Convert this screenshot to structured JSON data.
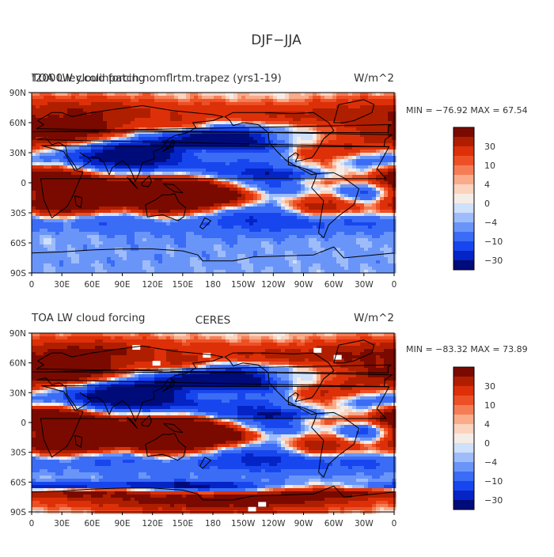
{
  "figure": {
    "title": "DJF−JJA"
  },
  "colors": {
    "scale": [
      "#000b7a",
      "#0524c6",
      "#1846ee",
      "#3b6cf6",
      "#6a95f8",
      "#9ebcf9",
      "#cfe0fb",
      "#f6ece6",
      "#fbd3bf",
      "#f9ab8a",
      "#f57d56",
      "#ee5025",
      "#dd3008",
      "#b01e00",
      "#7a0a00"
    ]
  },
  "panels": [
    {
      "id": "top",
      "title_left_a": "TOA LW cloud forcing",
      "title_left_b": "f2000.ley.colinpatch.nomflrtm.trapez (yrs1-19)",
      "title_center": "",
      "title_right": "W/m^2",
      "stats": "MIN = −76.92  MAX =  67.54",
      "colorbar_labels": [
        "30",
        "10",
        "4",
        "0",
        "−4",
        "−10",
        "−30"
      ]
    },
    {
      "id": "bottom",
      "title_left_a": "TOA LW cloud forcing",
      "title_left_b": "",
      "title_center": "CERES",
      "title_right": "W/m^2",
      "stats": "MIN = −83.32  MAX =  73.89",
      "colorbar_labels": [
        "30",
        "10",
        "4",
        "0",
        "−4",
        "−10",
        "−30"
      ]
    }
  ],
  "axes": {
    "lat_ticks": [
      "90N",
      "60N",
      "30N",
      "0",
      "30S",
      "60S",
      "90S"
    ],
    "lon_ticks": [
      "0",
      "30E",
      "60E",
      "90E",
      "120E",
      "150E",
      "180",
      "150W",
      "120W",
      "90W",
      "60W",
      "30W",
      "0"
    ]
  },
  "chart_data": [
    {
      "type": "heatmap",
      "title": "TOA LW cloud forcing",
      "subtitle": "f2000.ley.colinpatch.nomflrtm.trapez (yrs1-19)",
      "units": "W/m^2",
      "min": -76.92,
      "max": 67.54,
      "contour_levels": [
        -40,
        -30,
        -20,
        -10,
        -6,
        -4,
        -2,
        0,
        2,
        4,
        6,
        10,
        20,
        30,
        40
      ],
      "x_range": [
        "0",
        "0"
      ],
      "y_range": [
        "90S",
        "90N"
      ],
      "features": [
        {
          "lon": 20,
          "lat": -10,
          "value": 45
        },
        {
          "lon": 140,
          "lat": -12,
          "value": 35
        },
        {
          "lon": 300,
          "lat": -10,
          "value": 50
        },
        {
          "lon": 120,
          "lat": 20,
          "value": -40
        },
        {
          "lon": 230,
          "lat": 10,
          "value": -25
        },
        {
          "lon": 200,
          "lat": 30,
          "value": 25
        },
        {
          "lon": 340,
          "lat": 40,
          "value": 30
        },
        {
          "lon": 70,
          "lat": 55,
          "value": 25
        },
        {
          "lon": 180,
          "lat": -55,
          "value": -20
        }
      ]
    },
    {
      "type": "heatmap",
      "title": "TOA LW cloud forcing",
      "subtitle": "CERES",
      "units": "W/m^2",
      "min": -83.32,
      "max": 73.89,
      "contour_levels": [
        -40,
        -30,
        -20,
        -10,
        -6,
        -4,
        -2,
        0,
        2,
        4,
        6,
        10,
        20,
        30,
        40
      ],
      "x_range": [
        "0",
        "0"
      ],
      "y_range": [
        "90S",
        "90N"
      ],
      "features": [
        {
          "lon": 30,
          "lat": -10,
          "value": 50
        },
        {
          "lon": 130,
          "lat": -15,
          "value": 40
        },
        {
          "lon": 300,
          "lat": -10,
          "value": 55
        },
        {
          "lon": 120,
          "lat": 20,
          "value": -45
        },
        {
          "lon": 230,
          "lat": 10,
          "value": -30
        },
        {
          "lon": 200,
          "lat": 30,
          "value": 30
        },
        {
          "lon": 340,
          "lat": 40,
          "value": 35
        },
        {
          "lon": 180,
          "lat": -80,
          "value": 40
        },
        {
          "lon": 180,
          "lat": -55,
          "value": -30
        }
      ]
    }
  ]
}
